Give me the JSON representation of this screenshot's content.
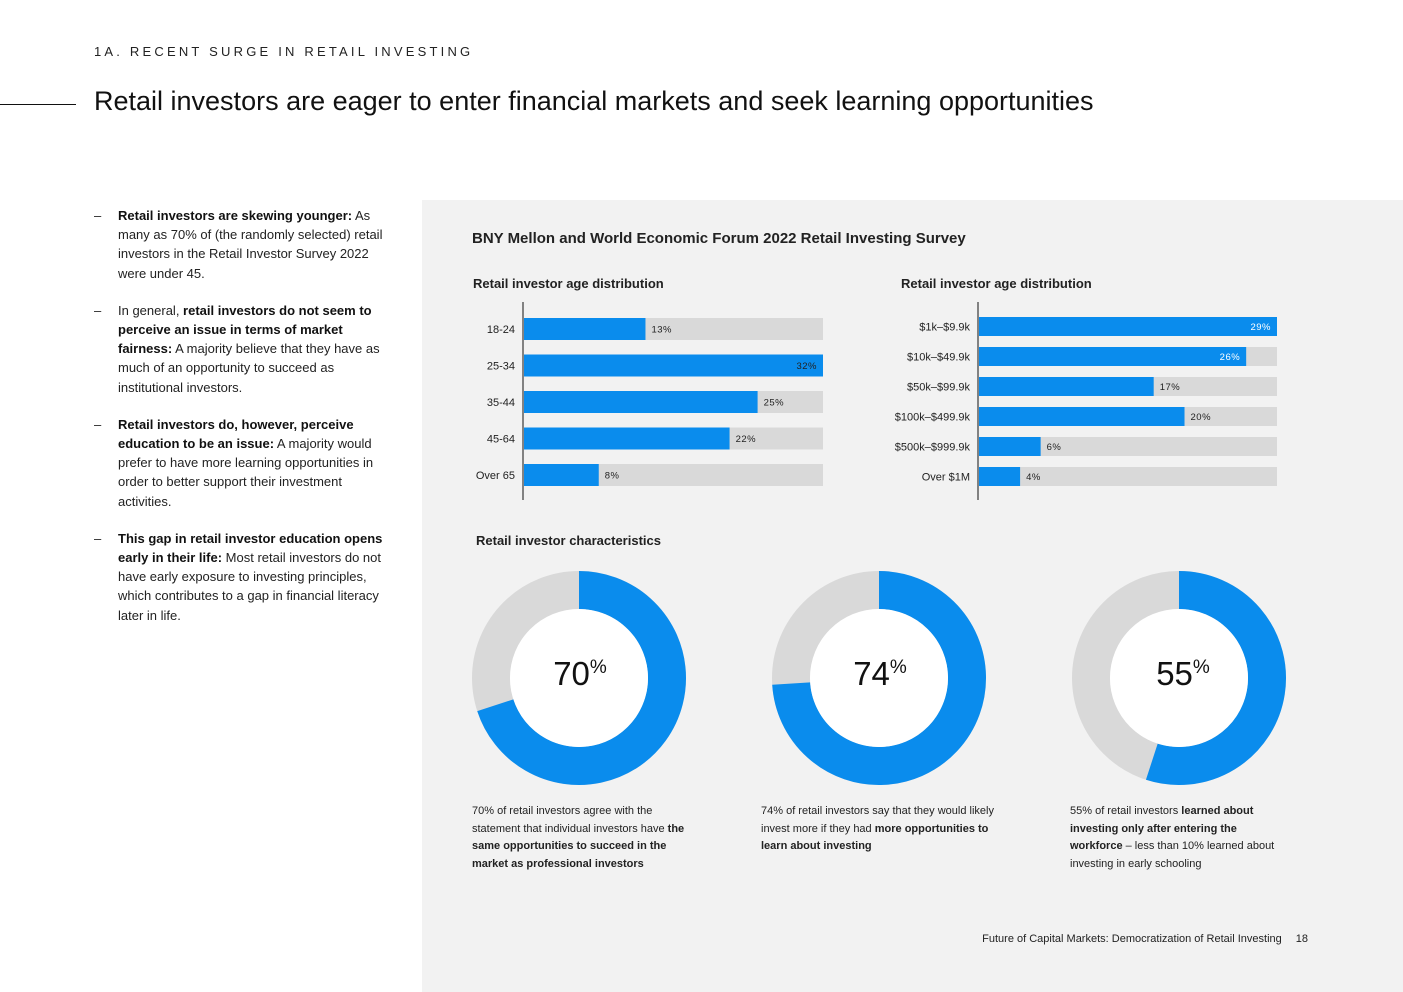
{
  "header": {
    "section": "1A. RECENT SURGE IN RETAIL INVESTING",
    "title": "Retail investors are eager to enter financial markets and seek learning opportunities"
  },
  "bullets": [
    {
      "bold": "Retail investors are skewing younger:",
      "pre": "",
      "text": " As many as 70% of (the randomly selected) retail investors in the Retail Investor Survey 2022 were under 45."
    },
    {
      "pre": "In general, ",
      "bold": "retail investors do not seem to perceive an issue in terms of market fairness:",
      "text": " A majority believe that they have as much of an opportunity to succeed as institutional investors."
    },
    {
      "bold": "Retail investors do, however, perceive education to be an issue:",
      "pre": "",
      "text": " A majority would prefer to have more learning opportunities in order to better support their investment activities."
    },
    {
      "bold": "This gap in retail investor education opens early in their life:",
      "pre": "",
      "text": " Most retail investors do not have early exposure to investing principles, which contributes to a gap in financial literacy later in life."
    }
  ],
  "panel": {
    "survey_title": "BNY Mellon and World Economic Forum 2022 Retail Investing Survey",
    "characteristics_title": "Retail investor characteristics"
  },
  "colors": {
    "accent": "#0a8ced",
    "track": "#d9d9d9",
    "panel": "#f2f2f2"
  },
  "chart_data": [
    {
      "type": "bar",
      "orientation": "horizontal",
      "title": "Retail investor age distribution",
      "categories": [
        "18-24",
        "25-34",
        "35-44",
        "45-64",
        "Over 65"
      ],
      "values": [
        13,
        32,
        25,
        22,
        8
      ],
      "labels": [
        "13%",
        "32%",
        "25%",
        "22%",
        "8%"
      ],
      "xlim": [
        0,
        32
      ]
    },
    {
      "type": "bar",
      "orientation": "horizontal",
      "title": "Retail investor age distribution",
      "categories": [
        "$1k–$9.9k",
        "$10k–$49.9k",
        "$50k–$99.9k",
        "$100k–$499.9k",
        "$500k–$999.9k",
        "Over $1M"
      ],
      "values": [
        29,
        26,
        17,
        20,
        6,
        4
      ],
      "labels": [
        "29%",
        "26%",
        "17%",
        "20%",
        "6%",
        "4%"
      ],
      "xlim": [
        0,
        29
      ]
    },
    {
      "type": "pie",
      "variant": "donut",
      "value": 70,
      "number": "70",
      "suffix": "%",
      "caption": [
        {
          "t": "70% of retail investors agree with the statement that individual investors have ",
          "b": false
        },
        {
          "t": "the same opportunities to succeed in the market as professional investors",
          "b": true
        }
      ]
    },
    {
      "type": "pie",
      "variant": "donut",
      "value": 74,
      "number": "74",
      "suffix": "%",
      "caption": [
        {
          "t": "74% of retail investors say that they would likely invest more if they had ",
          "b": false
        },
        {
          "t": "more opportunities to learn about investing",
          "b": true
        }
      ]
    },
    {
      "type": "pie",
      "variant": "donut",
      "value": 55,
      "number": "55",
      "suffix": "%",
      "caption": [
        {
          "t": "55% of retail investors ",
          "b": false
        },
        {
          "t": "learned about investing only after entering the workforce",
          "b": true
        },
        {
          "t": " – less than 10% learned about investing in early schooling",
          "b": false
        }
      ]
    }
  ],
  "footer": {
    "doc_bold": "Future of Capital Markets:",
    "doc_rest": " Democratization of Retail Investing",
    "page": "18"
  }
}
